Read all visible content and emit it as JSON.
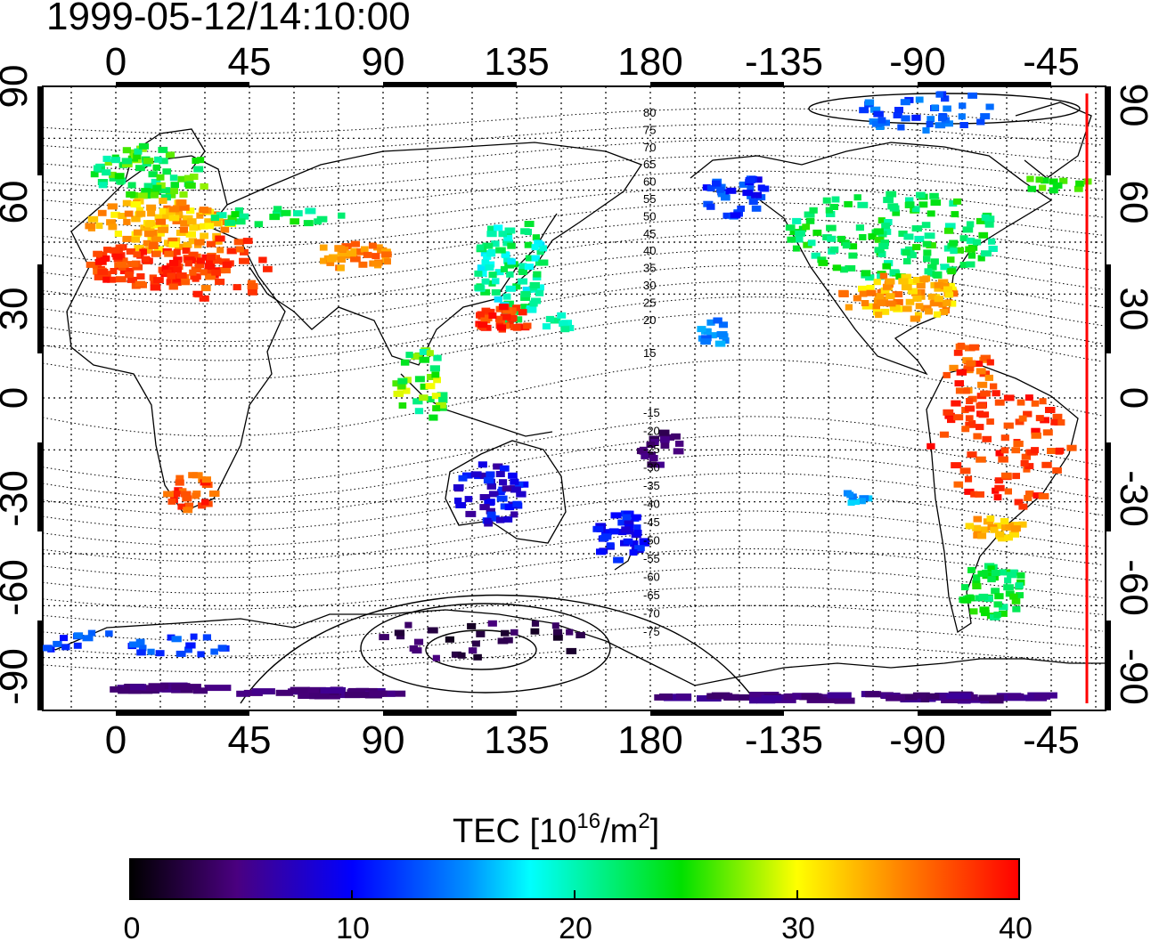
{
  "title": "1999-05-12/14:10:00",
  "map": {
    "lon_ticks": [
      "0",
      "45",
      "90",
      "135",
      "180",
      "-135",
      "-90",
      "-45"
    ],
    "lat_ticks": [
      "90",
      "60",
      "30",
      "0",
      "-30",
      "-60",
      "-90"
    ],
    "mlat_labels_north": [
      "80",
      "75",
      "70",
      "65",
      "60",
      "55",
      "50",
      "45",
      "40",
      "35",
      "30",
      "25",
      "20",
      "15"
    ],
    "mlat_labels_south": [
      "-15",
      "-20",
      "-25",
      "-30",
      "-35",
      "-40",
      "-45",
      "-50",
      "-55",
      "-60",
      "-65",
      "-70",
      "-75"
    ],
    "terminator_color": "#ff0000"
  },
  "colorbar": {
    "label_prefix": "TEC  [10",
    "label_sup1": "16",
    "label_mid": "/m",
    "label_sup2": "2",
    "label_suffix": "]",
    "ticks": [
      "0",
      "10",
      "20",
      "30",
      "40"
    ],
    "range": [
      0,
      40
    ]
  }
}
